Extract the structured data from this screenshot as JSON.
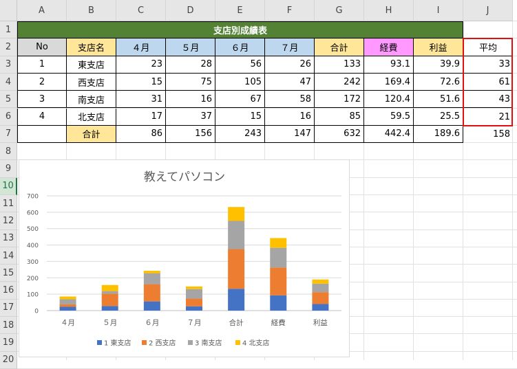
{
  "sheet": {
    "columns": [
      "A",
      "B",
      "C",
      "D",
      "E",
      "F",
      "G",
      "H",
      "I",
      "J"
    ],
    "rows": [
      "1",
      "2",
      "3",
      "4",
      "5",
      "6",
      "7",
      "8",
      "9",
      "10",
      "11",
      "12",
      "13",
      "14",
      "15",
      "16",
      "17",
      "18",
      "19",
      "20"
    ],
    "selected_row": "10"
  },
  "table": {
    "title": "支店別成績表",
    "headers": [
      "No",
      "支店名",
      "４月",
      "５月",
      "６月",
      "７月",
      "合計",
      "経費",
      "利益"
    ],
    "header_colors": [
      "#d9d9d9",
      "#ffe699",
      "#bdd7ee",
      "#bdd7ee",
      "#bdd7ee",
      "#bdd7ee",
      "#ffe699",
      "#ff99ff",
      "#ffe699"
    ],
    "rows": [
      [
        "1",
        "東支店",
        "23",
        "28",
        "56",
        "26",
        "133",
        "93.1",
        "39.9"
      ],
      [
        "2",
        "西支店",
        "15",
        "75",
        "105",
        "47",
        "242",
        "169.4",
        "72.6"
      ],
      [
        "3",
        "南支店",
        "31",
        "16",
        "67",
        "58",
        "172",
        "120.4",
        "51.6"
      ],
      [
        "4",
        "北支店",
        "17",
        "37",
        "15",
        "16",
        "85",
        "59.5",
        "25.5"
      ]
    ],
    "total_row": [
      "",
      "合計",
      "86",
      "156",
      "243",
      "147",
      "632",
      "442.4",
      "189.6"
    ],
    "average_header": "平均",
    "averages": [
      "33",
      "61",
      "43",
      "21"
    ],
    "average_total": "158"
  },
  "colors": {
    "title_bg": "#548235",
    "selection_border": "#e01010",
    "row_header_selected": "#217346"
  },
  "chart_data": {
    "type": "bar",
    "stacked": true,
    "title": "教えてパソコン",
    "categories": [
      "４月",
      "５月",
      "６月",
      "７月",
      "合計",
      "経費",
      "利益"
    ],
    "series": [
      {
        "name": "1 東支店",
        "color": "#4472c4",
        "values": [
          23,
          28,
          56,
          26,
          133,
          93.1,
          39.9
        ]
      },
      {
        "name": "2 西支店",
        "color": "#ed7d31",
        "values": [
          15,
          75,
          105,
          47,
          242,
          169.4,
          72.6
        ]
      },
      {
        "name": "3 南支店",
        "color": "#a5a5a5",
        "values": [
          31,
          16,
          67,
          58,
          172,
          120.4,
          51.6
        ]
      },
      {
        "name": "4 北支店",
        "color": "#ffc000",
        "values": [
          17,
          37,
          15,
          16,
          85,
          59.5,
          25.5
        ]
      }
    ],
    "yticks": [
      "0",
      "100",
      "200",
      "300",
      "400",
      "500",
      "600",
      "700"
    ],
    "ylim": [
      0,
      700
    ],
    "grid": true,
    "legend_position": "bottom"
  }
}
